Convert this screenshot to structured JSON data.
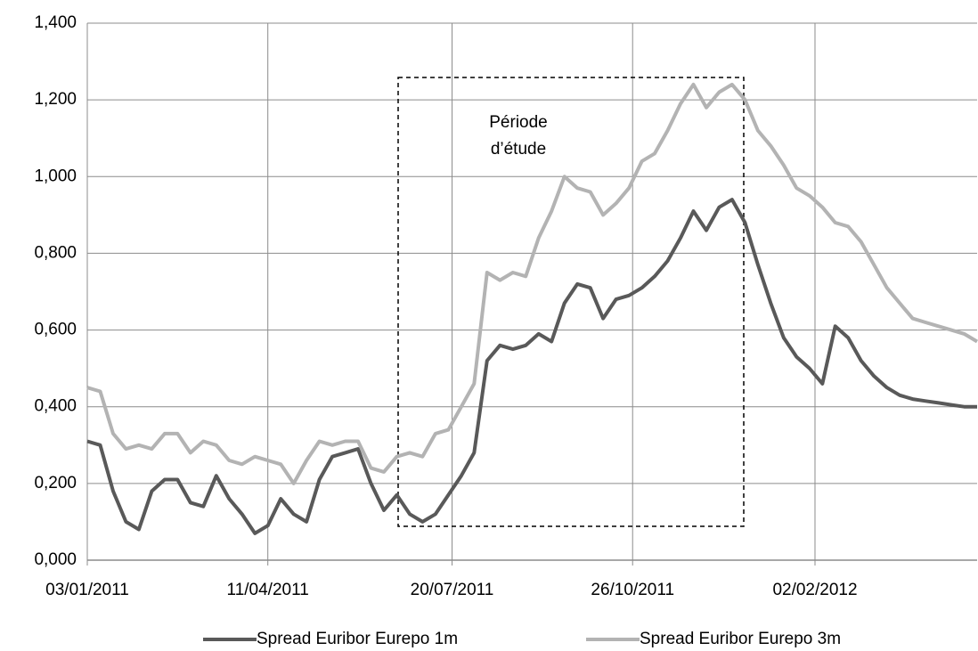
{
  "chart_data": {
    "type": "line",
    "annotation": "Période d’étude",
    "x": [
      "03/01/2011",
      "10/01/2011",
      "17/01/2011",
      "24/01/2011",
      "31/01/2011",
      "07/02/2011",
      "14/02/2011",
      "21/02/2011",
      "28/02/2011",
      "07/03/2011",
      "14/03/2011",
      "21/03/2011",
      "28/03/2011",
      "04/04/2011",
      "11/04/2011",
      "18/04/2011",
      "25/04/2011",
      "02/05/2011",
      "09/05/2011",
      "16/05/2011",
      "23/05/2011",
      "30/05/2011",
      "06/06/2011",
      "13/06/2011",
      "20/06/2011",
      "27/06/2011",
      "04/07/2011",
      "11/07/2011",
      "18/07/2011",
      "25/07/2011",
      "01/08/2011",
      "08/08/2011",
      "15/08/2011",
      "22/08/2011",
      "29/08/2011",
      "05/09/2011",
      "12/09/2011",
      "19/09/2011",
      "26/09/2011",
      "03/10/2011",
      "10/10/2011",
      "17/10/2011",
      "24/10/2011",
      "31/10/2011",
      "07/11/2011",
      "14/11/2011",
      "21/11/2011",
      "28/11/2011",
      "05/12/2011",
      "12/12/2011",
      "19/12/2011",
      "26/12/2011",
      "02/01/2012",
      "09/01/2012",
      "16/01/2012",
      "23/01/2012",
      "30/01/2012",
      "06/02/2012",
      "13/02/2012",
      "20/02/2012",
      "27/02/2012",
      "05/03/2012",
      "12/03/2012",
      "19/03/2012",
      "26/03/2012",
      "02/04/2012",
      "09/04/2012",
      "16/04/2012",
      "23/04/2012",
      "30/04/2012"
    ],
    "series": [
      {
        "name": "Spread Euribor Eurepo 1m",
        "color": "#595959",
        "values": [
          0.31,
          0.3,
          0.18,
          0.1,
          0.08,
          0.18,
          0.21,
          0.21,
          0.15,
          0.14,
          0.22,
          0.16,
          0.12,
          0.07,
          0.09,
          0.16,
          0.12,
          0.1,
          0.21,
          0.27,
          0.28,
          0.29,
          0.2,
          0.13,
          0.17,
          0.12,
          0.1,
          0.12,
          0.17,
          0.22,
          0.28,
          0.52,
          0.56,
          0.55,
          0.56,
          0.59,
          0.57,
          0.67,
          0.72,
          0.71,
          0.63,
          0.68,
          0.69,
          0.71,
          0.74,
          0.78,
          0.84,
          0.91,
          0.86,
          0.92,
          0.94,
          0.88,
          0.77,
          0.67,
          0.58,
          0.53,
          0.5,
          0.46,
          0.61,
          0.58,
          0.52,
          0.48,
          0.45,
          0.43,
          0.42,
          0.415,
          0.41,
          0.405,
          0.4,
          0.4
        ]
      },
      {
        "name": "Spread Euribor Eurepo 3m",
        "color": "#b3b3b3",
        "values": [
          0.45,
          0.44,
          0.33,
          0.29,
          0.3,
          0.29,
          0.33,
          0.33,
          0.28,
          0.31,
          0.3,
          0.26,
          0.25,
          0.27,
          0.26,
          0.25,
          0.2,
          0.26,
          0.31,
          0.3,
          0.31,
          0.31,
          0.24,
          0.23,
          0.27,
          0.28,
          0.27,
          0.33,
          0.34,
          0.4,
          0.46,
          0.75,
          0.73,
          0.75,
          0.74,
          0.84,
          0.91,
          1.0,
          0.97,
          0.96,
          0.9,
          0.93,
          0.97,
          1.04,
          1.06,
          1.12,
          1.19,
          1.24,
          1.18,
          1.22,
          1.24,
          1.2,
          1.12,
          1.08,
          1.03,
          0.97,
          0.95,
          0.92,
          0.88,
          0.87,
          0.83,
          0.77,
          0.71,
          0.67,
          0.63,
          0.62,
          0.61,
          0.6,
          0.59,
          0.57
        ]
      }
    ],
    "xlim": [
      "03/01/2011",
      "30/04/2012"
    ],
    "xticks": [
      "03/01/2011",
      "20/07/2011",
      "02/02/2012",
      "11/04/2011",
      "26/10/2011"
    ],
    "ylim": [
      0,
      1.4
    ],
    "yticks": [
      {
        "value": 0,
        "label": "0,000"
      },
      {
        "value": 0.2,
        "label": "0,200"
      },
      {
        "value": 0.4,
        "label": "0,400"
      },
      {
        "value": 0.6,
        "label": "0,600"
      },
      {
        "value": 0.8,
        "label": "0,800"
      },
      {
        "value": 1.0,
        "label": "1,000"
      },
      {
        "value": 1.2,
        "label": "1,200"
      },
      {
        "value": 1.4,
        "label": "1,400"
      }
    ],
    "grid": true,
    "legend": "bottom"
  }
}
